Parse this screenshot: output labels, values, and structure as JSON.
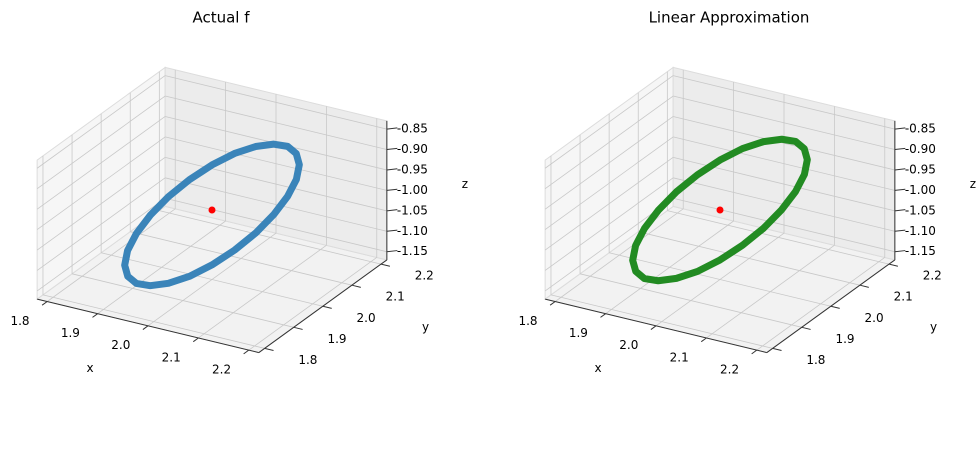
{
  "chart_data": [
    {
      "type": "line3d",
      "title": "Actual f",
      "xlabel": "x",
      "ylabel": "y",
      "zlabel": "z",
      "color": "#3a84b9",
      "x": [
        2.15,
        2.145,
        2.13,
        2.106,
        2.075,
        2.039,
        2.0,
        1.961,
        1.925,
        1.894,
        1.87,
        1.855,
        1.85,
        1.855,
        1.87,
        1.894,
        1.925,
        1.961,
        2.0,
        2.039,
        2.075,
        2.106,
        2.13,
        2.145,
        2.15
      ],
      "y": [
        2.0,
        2.039,
        2.075,
        2.106,
        2.13,
        2.145,
        2.15,
        2.145,
        2.13,
        2.106,
        2.075,
        2.039,
        2.0,
        1.961,
        1.925,
        1.894,
        1.87,
        1.855,
        1.85,
        1.855,
        1.87,
        1.894,
        1.925,
        1.961,
        2.0
      ],
      "z": [
        -0.922,
        -0.902,
        -0.889,
        -0.885,
        -0.889,
        -0.902,
        -0.922,
        -0.948,
        -0.979,
        -1.012,
        -1.045,
        -1.076,
        -1.102,
        -1.122,
        -1.135,
        -1.139,
        -1.135,
        -1.122,
        -1.102,
        -1.076,
        -1.045,
        -1.012,
        -0.979,
        -0.948,
        -0.922
      ],
      "point": {
        "x": 2.0,
        "y": 2.0,
        "z": -1.0,
        "color": "#ff0000"
      },
      "xlim": [
        1.78,
        2.22
      ],
      "ylim": [
        1.78,
        2.22
      ],
      "zlim": [
        -1.17,
        -0.83
      ],
      "xticks": [
        1.8,
        1.9,
        {
          "value": 2,
          "label": "2.0"
        },
        2.1,
        2.2
      ],
      "yticks": [
        1.8,
        1.9,
        {
          "value": 2,
          "label": "2.0"
        },
        2.1,
        2.2
      ],
      "zticks": [
        -1.15,
        {
          "value": -1.1,
          "label": "-1.10"
        },
        -1.05,
        {
          "value": -1,
          "label": "-1.00"
        },
        -0.95,
        {
          "value": -0.9,
          "label": "-0.90"
        },
        -0.85
      ],
      "grid": true
    },
    {
      "type": "line3d",
      "title": "Linear Approximation",
      "xlabel": "x",
      "ylabel": "y",
      "zlabel": "z",
      "color": "#228b22",
      "x": [
        2.15,
        2.145,
        2.13,
        2.106,
        2.075,
        2.039,
        2.0,
        1.961,
        1.925,
        1.894,
        1.87,
        1.855,
        1.85,
        1.855,
        1.87,
        1.894,
        1.925,
        1.961,
        2.0,
        2.039,
        2.075,
        2.106,
        2.13,
        2.145,
        2.15
      ],
      "y": [
        2.0,
        2.039,
        2.075,
        2.106,
        2.13,
        2.145,
        2.15,
        2.145,
        2.13,
        2.106,
        2.075,
        2.039,
        2.0,
        1.961,
        1.925,
        1.894,
        1.87,
        1.855,
        1.85,
        1.855,
        1.87,
        1.894,
        1.925,
        1.961,
        2.0
      ],
      "z": [
        -0.91,
        -0.89,
        -0.877,
        -0.873,
        -0.877,
        -0.89,
        -0.91,
        -0.936,
        -0.967,
        -1.0,
        -1.033,
        -1.064,
        -1.09,
        -1.11,
        -1.123,
        -1.127,
        -1.123,
        -1.11,
        -1.09,
        -1.064,
        -1.033,
        -1.0,
        -0.967,
        -0.936,
        -0.91
      ],
      "point": {
        "x": 2.0,
        "y": 2.0,
        "z": -1.0,
        "color": "#ff0000"
      },
      "xlim": [
        1.78,
        2.22
      ],
      "ylim": [
        1.78,
        2.22
      ],
      "zlim": [
        -1.17,
        -0.83
      ],
      "xticks": [
        1.8,
        1.9,
        {
          "value": 2,
          "label": "2.0"
        },
        2.1,
        2.2
      ],
      "yticks": [
        1.8,
        1.9,
        {
          "value": 2,
          "label": "2.0"
        },
        2.1,
        2.2
      ],
      "zticks": [
        -1.15,
        {
          "value": -1.1,
          "label": "-1.10"
        },
        -1.05,
        {
          "value": -1,
          "label": "-1.00"
        },
        -0.95,
        {
          "value": -0.9,
          "label": "-0.90"
        },
        -0.85
      ],
      "grid": true
    }
  ]
}
